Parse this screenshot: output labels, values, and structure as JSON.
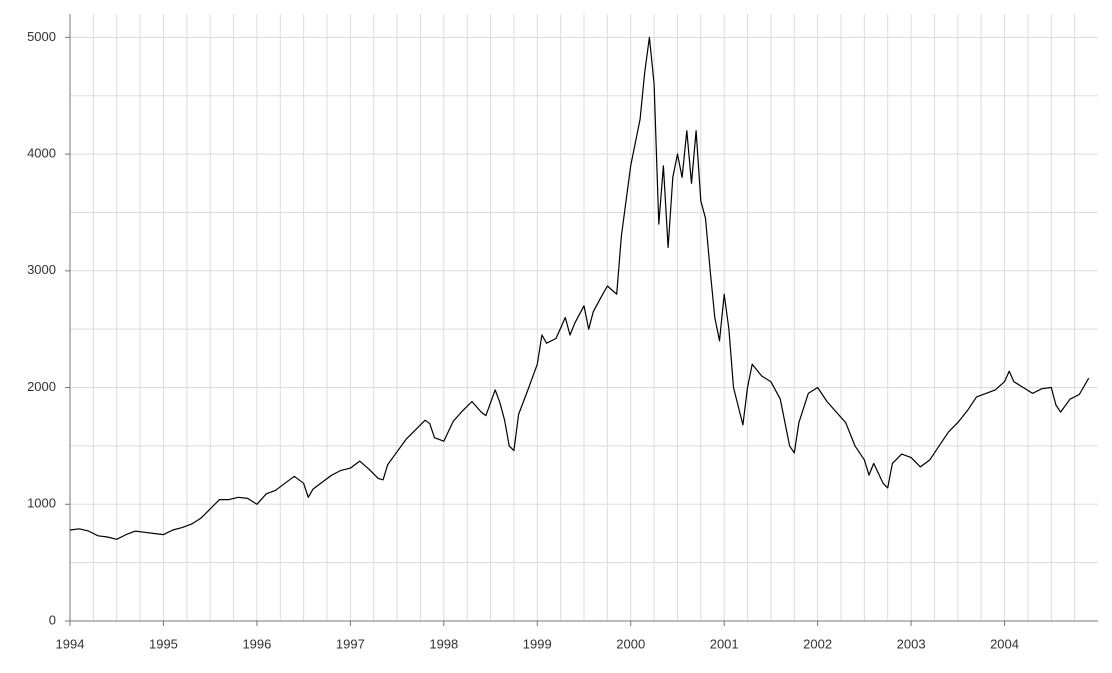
{
  "chart_data": {
    "type": "line",
    "color": "#000000",
    "grid": true,
    "xlim": [
      1994,
      2005
    ],
    "xticks": [
      1994,
      1995,
      1996,
      1997,
      1998,
      1999,
      2000,
      2001,
      2002,
      2003,
      2004
    ],
    "x_minor_ticks": [
      1994.25,
      1994.5,
      1994.75,
      1995.25,
      1995.5,
      1995.75,
      1996.25,
      1996.5,
      1996.75,
      1997.25,
      1997.5,
      1997.75,
      1998.25,
      1998.5,
      1998.75,
      1999.25,
      1999.5,
      1999.75,
      2000.25,
      2000.5,
      2000.75,
      2001.25,
      2001.5,
      2001.75,
      2002.25,
      2002.5,
      2002.75,
      2003.25,
      2003.5,
      2003.75,
      2004.25,
      2004.5,
      2004.75
    ],
    "ylim": [
      0,
      5200
    ],
    "yticks": [
      0,
      1000,
      2000,
      3000,
      4000,
      5000
    ],
    "y_minor_ticks": [
      500,
      1500,
      2500,
      3500,
      4500
    ],
    "x": [
      1994.0,
      1994.1,
      1994.2,
      1994.3,
      1994.4,
      1994.5,
      1994.6,
      1994.7,
      1994.8,
      1994.9,
      1995.0,
      1995.1,
      1995.2,
      1995.3,
      1995.4,
      1995.5,
      1995.6,
      1995.7,
      1995.8,
      1995.9,
      1996.0,
      1996.1,
      1996.2,
      1996.3,
      1996.4,
      1996.5,
      1996.55,
      1996.6,
      1996.7,
      1996.8,
      1996.9,
      1997.0,
      1997.1,
      1997.2,
      1997.3,
      1997.35,
      1997.4,
      1997.5,
      1997.6,
      1997.7,
      1997.8,
      1997.85,
      1997.9,
      1998.0,
      1998.1,
      1998.2,
      1998.3,
      1998.4,
      1998.45,
      1998.55,
      1998.6,
      1998.65,
      1998.7,
      1998.75,
      1998.8,
      1998.9,
      1999.0,
      1999.05,
      1999.1,
      1999.2,
      1999.3,
      1999.35,
      1999.4,
      1999.5,
      1999.55,
      1999.6,
      1999.7,
      1999.75,
      1999.85,
      1999.9,
      2000.0,
      2000.05,
      2000.1,
      2000.15,
      2000.2,
      2000.25,
      2000.3,
      2000.35,
      2000.4,
      2000.45,
      2000.5,
      2000.55,
      2000.6,
      2000.65,
      2000.7,
      2000.75,
      2000.8,
      2000.85,
      2000.9,
      2000.95,
      2001.0,
      2001.05,
      2001.1,
      2001.2,
      2001.25,
      2001.3,
      2001.4,
      2001.5,
      2001.6,
      2001.7,
      2001.75,
      2001.8,
      2001.9,
      2002.0,
      2002.1,
      2002.2,
      2002.3,
      2002.4,
      2002.5,
      2002.55,
      2002.6,
      2002.7,
      2002.75,
      2002.8,
      2002.9,
      2003.0,
      2003.1,
      2003.2,
      2003.3,
      2003.4,
      2003.5,
      2003.6,
      2003.7,
      2003.8,
      2003.9,
      2004.0,
      2004.05,
      2004.1,
      2004.2,
      2004.3,
      2004.4,
      2004.5,
      2004.55,
      2004.6,
      2004.7,
      2004.8,
      2004.9
    ],
    "values": [
      780,
      790,
      770,
      730,
      720,
      700,
      740,
      770,
      760,
      750,
      740,
      780,
      800,
      830,
      880,
      960,
      1040,
      1040,
      1060,
      1050,
      1000,
      1090,
      1120,
      1180,
      1240,
      1180,
      1060,
      1130,
      1190,
      1250,
      1290,
      1310,
      1370,
      1300,
      1220,
      1210,
      1340,
      1450,
      1560,
      1640,
      1720,
      1690,
      1570,
      1540,
      1710,
      1800,
      1880,
      1790,
      1760,
      1980,
      1870,
      1720,
      1500,
      1460,
      1770,
      1980,
      2200,
      2450,
      2380,
      2420,
      2600,
      2450,
      2550,
      2700,
      2500,
      2650,
      2800,
      2870,
      2800,
      3300,
      3900,
      4100,
      4300,
      4700,
      5000,
      4600,
      3400,
      3900,
      3200,
      3800,
      4000,
      3800,
      4200,
      3750,
      4200,
      3600,
      3450,
      3000,
      2600,
      2400,
      2800,
      2500,
      2000,
      1680,
      2000,
      2200,
      2100,
      2050,
      1900,
      1500,
      1440,
      1700,
      1950,
      2000,
      1880,
      1790,
      1700,
      1500,
      1380,
      1250,
      1350,
      1180,
      1140,
      1350,
      1430,
      1400,
      1320,
      1380,
      1500,
      1620,
      1700,
      1800,
      1920,
      1950,
      1980,
      2050,
      2140,
      2050,
      2000,
      1950,
      1990,
      2000,
      1850,
      1790,
      1900,
      1940,
      2080
    ]
  }
}
